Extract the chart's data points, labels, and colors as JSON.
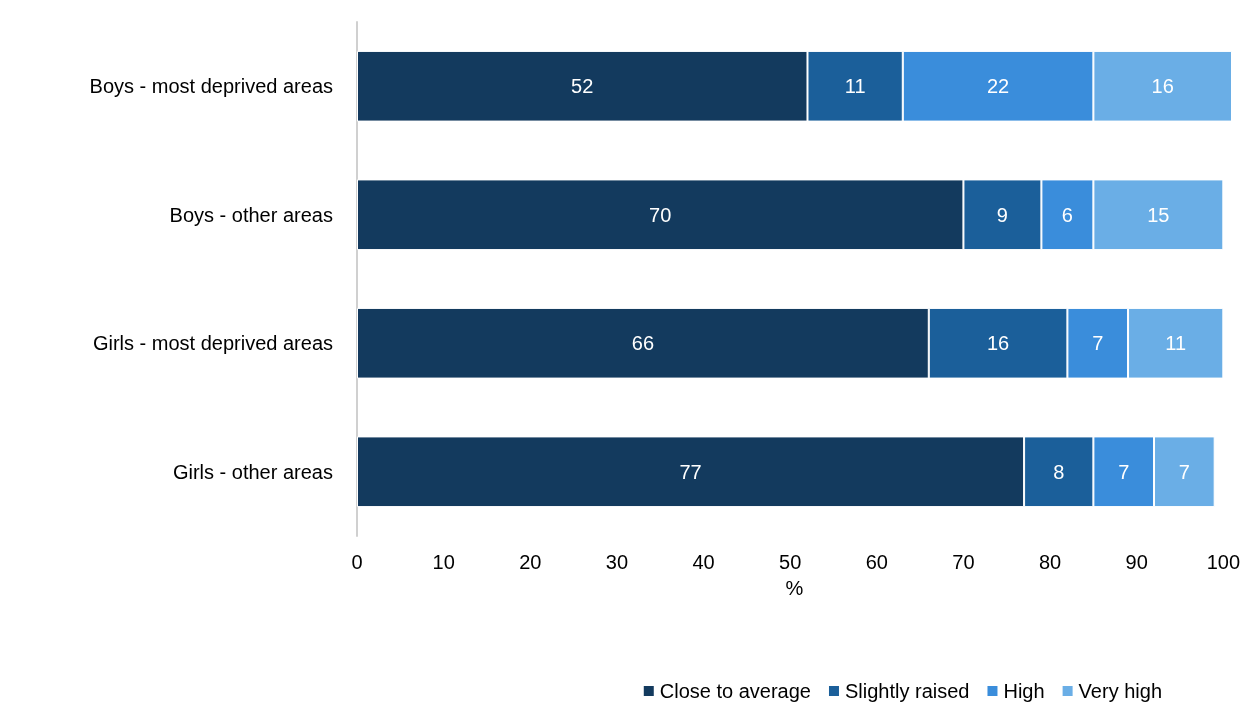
{
  "chart_data": {
    "type": "bar",
    "orientation": "horizontal",
    "stacked": true,
    "xlabel": "%",
    "categories": [
      "Boys - most deprived areas",
      "Boys - other areas",
      "Girls - most deprived areas",
      "Girls - other areas"
    ],
    "series": [
      {
        "name": "Close to average",
        "color": "#133a5e",
        "values": [
          52,
          70,
          66,
          77
        ]
      },
      {
        "name": "Slightly raised",
        "color": "#1b5f9a",
        "values": [
          11,
          9,
          16,
          8
        ]
      },
      {
        "name": "High",
        "color": "#3a8ddb",
        "values": [
          22,
          6,
          7,
          7
        ]
      },
      {
        "name": "Very high",
        "color": "#6aaee6",
        "values": [
          16,
          15,
          11,
          7
        ]
      }
    ],
    "xlim": [
      0,
      101
    ],
    "xticks": [
      0,
      10,
      20,
      30,
      40,
      50,
      60,
      70,
      80,
      90,
      100
    ],
    "data_labels": true,
    "grid": false,
    "legend": "bottom"
  }
}
